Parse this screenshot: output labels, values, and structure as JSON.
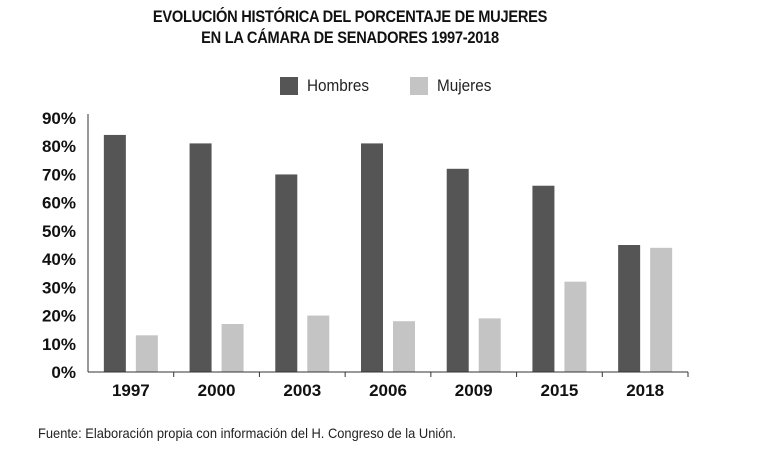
{
  "chart_data": {
    "type": "bar",
    "title_lines": [
      "EVOLUCIÓN HISTÓRICA DEL PORCENTAJE DE MUJERES",
      "EN LA CÁMARA DE SENADORES 1997-2018"
    ],
    "categories": [
      "1997",
      "2000",
      "2003",
      "2006",
      "2009",
      "2015",
      "2018"
    ],
    "series": [
      {
        "name": "Hombres",
        "color": "#555555",
        "values": [
          84,
          81,
          70,
          81,
          72,
          66,
          45
        ]
      },
      {
        "name": "Mujeres",
        "color": "#c4c4c4",
        "values": [
          13,
          17,
          20,
          18,
          19,
          32,
          44
        ]
      }
    ],
    "ylim": [
      0,
      90
    ],
    "yticks": [
      0,
      10,
      20,
      30,
      40,
      50,
      60,
      70,
      80,
      90
    ],
    "ytick_labels": [
      "0%",
      "10%",
      "20%",
      "30%",
      "40%",
      "50%",
      "60%",
      "70%",
      "80%",
      "90%"
    ],
    "xlabel": "",
    "ylabel": "",
    "legend_position": "top-center",
    "grid": false
  },
  "source": "Fuente: Elaboración propia con información del H. Congreso de la Unión."
}
